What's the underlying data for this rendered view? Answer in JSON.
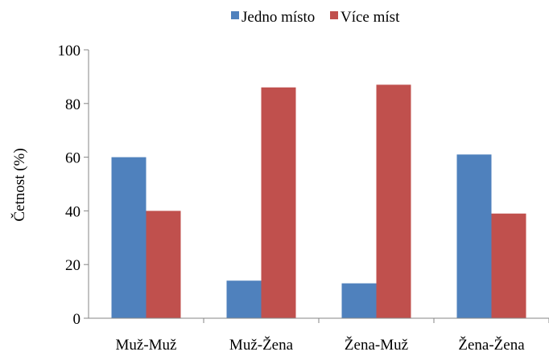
{
  "chart_data": {
    "type": "bar",
    "categories": [
      "Muž-Muž",
      "Muž-Žena",
      "Žena-Muž",
      "Žena-Žena"
    ],
    "series": [
      {
        "name": "Jedno místo",
        "values": [
          60,
          14,
          13,
          61
        ],
        "color": "#4f81bd"
      },
      {
        "name": "Více míst",
        "values": [
          40,
          86,
          87,
          39
        ],
        "color": "#c0504d"
      }
    ],
    "ylabel": "Četnost (%)",
    "ylim": [
      0,
      100
    ],
    "yticks": [
      0,
      20,
      40,
      60,
      80,
      100
    ],
    "grid": false,
    "legend": "top"
  }
}
